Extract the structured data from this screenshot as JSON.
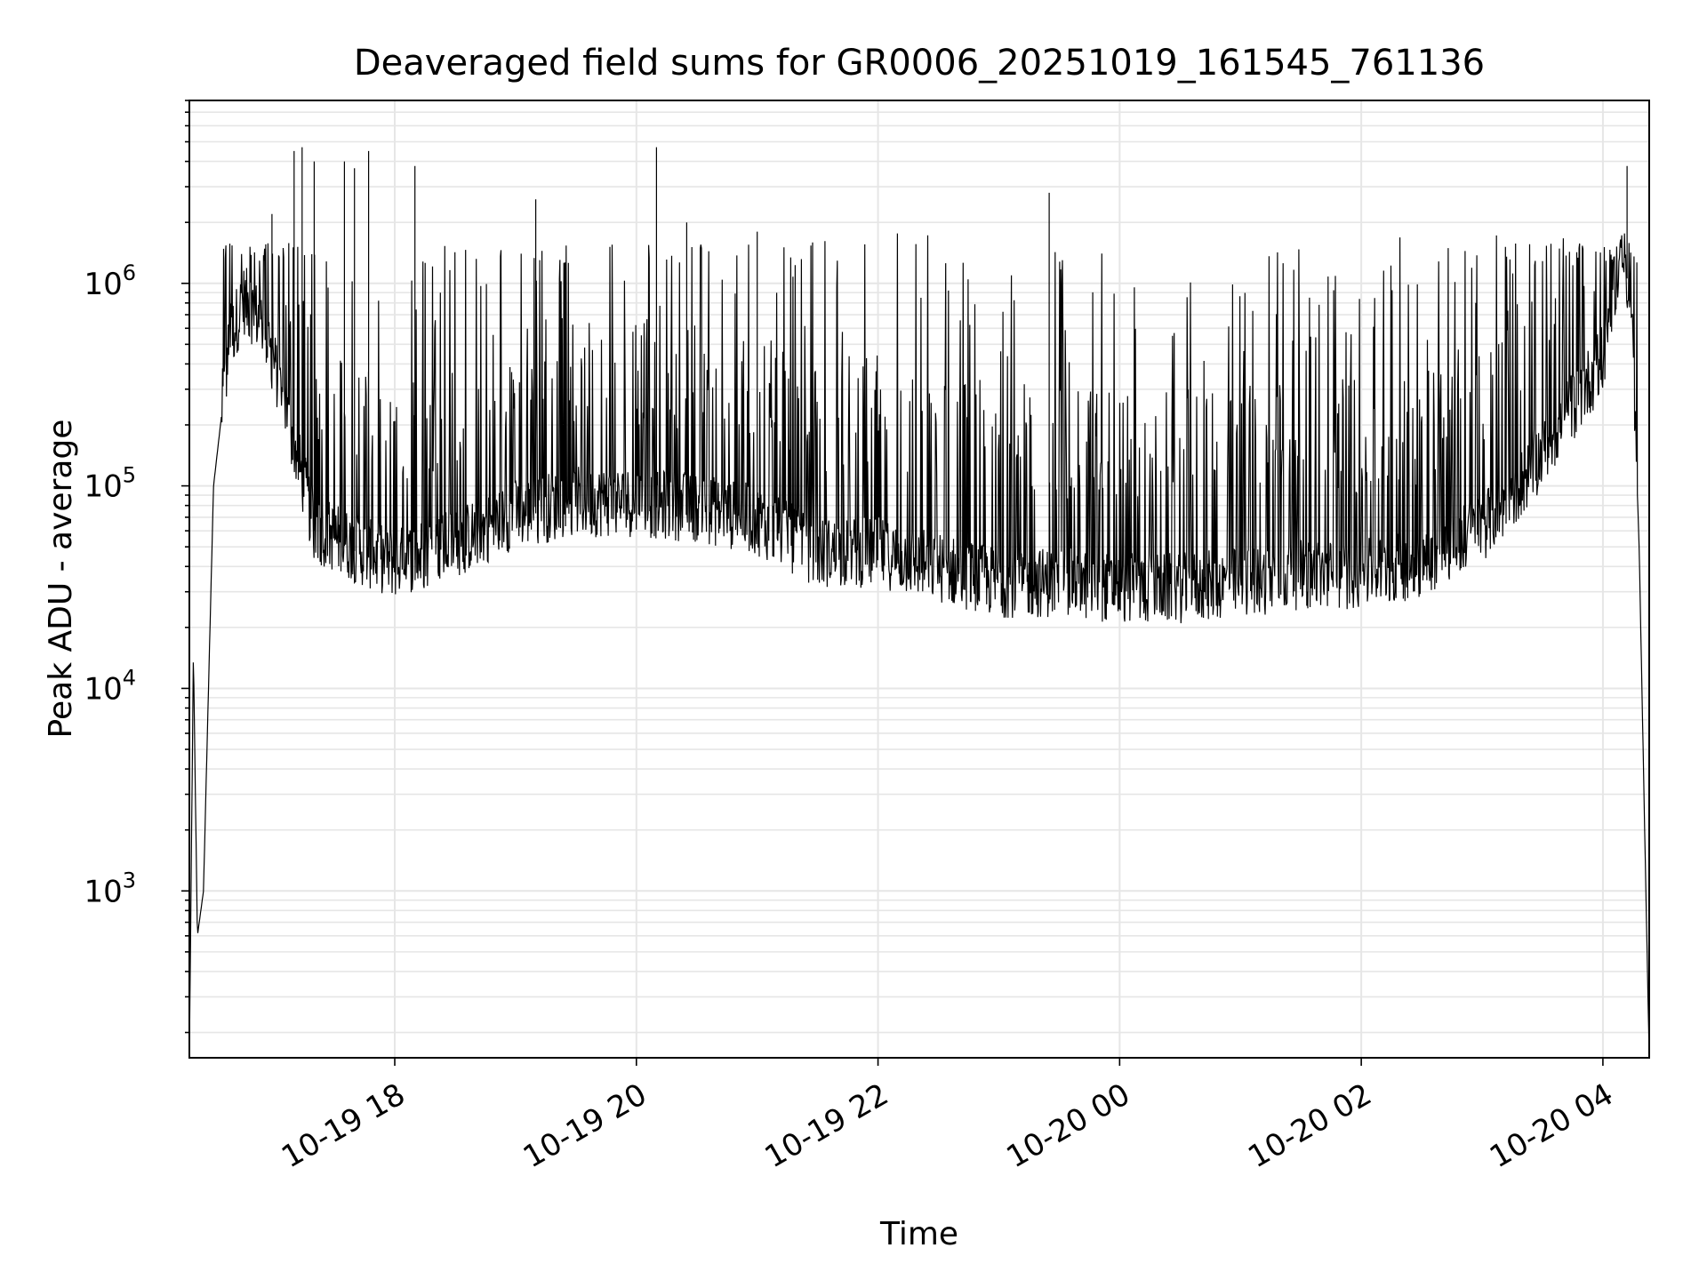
{
  "chart_data": {
    "type": "line",
    "title": "Deaveraged field sums for GR0006_20251019_161545_761136",
    "xlabel": "Time",
    "ylabel": "Peak ADU - average",
    "x_range": [
      "2025-10-19T16:18",
      "2025-10-20T04:23"
    ],
    "ylim": [
      150,
      8000000
    ],
    "yscale": "log",
    "grid": true,
    "line_color": "#000000",
    "x_ticks": [
      {
        "t": "2025-10-19T18:00",
        "label": "10-19 18"
      },
      {
        "t": "2025-10-19T20:00",
        "label": "10-19 20"
      },
      {
        "t": "2025-10-19T22:00",
        "label": "10-19 22"
      },
      {
        "t": "2025-10-20T00:00",
        "label": "10-20 00"
      },
      {
        "t": "2025-10-20T02:00",
        "label": "10-20 02"
      },
      {
        "t": "2025-10-20T04:00",
        "label": "10-20 04"
      }
    ],
    "y_ticks": [
      {
        "value": 1000,
        "base": "10",
        "exp": "3"
      },
      {
        "value": 10000,
        "base": "10",
        "exp": "4"
      },
      {
        "value": 100000,
        "base": "10",
        "exp": "5"
      },
      {
        "value": 1000000,
        "base": "10",
        "exp": "6"
      }
    ],
    "series": [
      {
        "baseline_profile": [
          [
            "2025-10-19T16:18",
            150
          ],
          [
            "2025-10-19T16:20",
            15000
          ],
          [
            "2025-10-19T16:22",
            600
          ],
          [
            "2025-10-19T16:25",
            1000
          ],
          [
            "2025-10-19T16:30",
            100000
          ],
          [
            "2025-10-19T16:38",
            500000
          ],
          [
            "2025-10-19T16:45",
            800000
          ],
          [
            "2025-10-19T16:55",
            600000
          ],
          [
            "2025-10-19T17:05",
            250000
          ],
          [
            "2025-10-19T17:20",
            60000
          ],
          [
            "2025-10-19T17:45",
            45000
          ],
          [
            "2025-10-19T18:00",
            40000
          ],
          [
            "2025-10-19T18:30",
            50000
          ],
          [
            "2025-10-19T19:00",
            70000
          ],
          [
            "2025-10-19T19:30",
            80000
          ],
          [
            "2025-10-19T20:00",
            80000
          ],
          [
            "2025-10-19T20:30",
            75000
          ],
          [
            "2025-10-19T21:00",
            65000
          ],
          [
            "2025-10-19T21:30",
            45000
          ],
          [
            "2025-10-19T22:00",
            45000
          ],
          [
            "2025-10-19T22:30",
            38000
          ],
          [
            "2025-10-19T23:00",
            32000
          ],
          [
            "2025-10-19T23:30",
            32000
          ],
          [
            "2025-10-20T00:00",
            30000
          ],
          [
            "2025-10-20T00:30",
            30000
          ],
          [
            "2025-10-20T01:00",
            32000
          ],
          [
            "2025-10-20T01:30",
            35000
          ],
          [
            "2025-10-20T02:00",
            35000
          ],
          [
            "2025-10-20T02:30",
            40000
          ],
          [
            "2025-10-20T03:00",
            60000
          ],
          [
            "2025-10-20T03:20",
            100000
          ],
          [
            "2025-10-20T03:40",
            200000
          ],
          [
            "2025-10-20T04:00",
            400000
          ],
          [
            "2025-10-20T04:05",
            900000
          ],
          [
            "2025-10-20T04:10",
            1400000
          ],
          [
            "2025-10-20T04:14",
            800000
          ],
          [
            "2025-10-20T04:18",
            50000
          ],
          [
            "2025-10-20T04:21",
            1500
          ],
          [
            "2025-10-20T04:23",
            150
          ]
        ],
        "spikes": [
          [
            "2025-10-19T16:59",
            2200000
          ],
          [
            "2025-10-19T17:10",
            4500000
          ],
          [
            "2025-10-19T17:14",
            4700000
          ],
          [
            "2025-10-19T17:20",
            4000000
          ],
          [
            "2025-10-19T17:35",
            4000000
          ],
          [
            "2025-10-19T17:40",
            3700000
          ],
          [
            "2025-10-19T17:47",
            4500000
          ],
          [
            "2025-10-19T18:10",
            3800000
          ],
          [
            "2025-10-19T19:10",
            2600000
          ],
          [
            "2025-10-19T20:10",
            4700000
          ],
          [
            "2025-10-19T20:25",
            2000000
          ],
          [
            "2025-10-19T21:00",
            1800000
          ],
          [
            "2025-10-19T23:25",
            2800000
          ],
          [
            "2025-10-20T04:12",
            3800000
          ]
        ]
      }
    ]
  }
}
